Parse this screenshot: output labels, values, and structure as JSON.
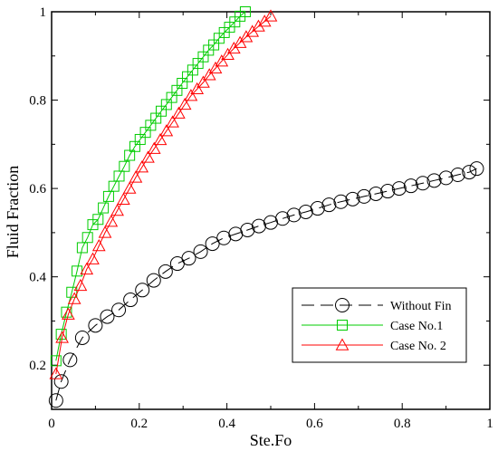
{
  "chart_data": {
    "type": "line",
    "xlabel": "Ste.Fo",
    "ylabel": "Fluid Fraction",
    "xlim": [
      0,
      1
    ],
    "ylim": [
      0.1,
      1
    ],
    "xticks": [
      0,
      0.2,
      0.4,
      0.6,
      0.8,
      1
    ],
    "xtick_labels": [
      "0",
      "0.2",
      "0.4",
      "0.6",
      "0.8",
      "1"
    ],
    "yticks": [
      0.2,
      0.4,
      0.6,
      0.8,
      1
    ],
    "ytick_labels": [
      "0.2",
      "0.4",
      "0.6",
      "0.8",
      "1"
    ],
    "legend_position": "bottom-right",
    "series": [
      {
        "name": "Without Fin",
        "color": "#000000",
        "marker": "circle",
        "line": "dashed",
        "x": [
          0.01,
          0.022,
          0.042,
          0.07,
          0.1,
          0.127,
          0.153,
          0.18,
          0.207,
          0.233,
          0.26,
          0.287,
          0.313,
          0.34,
          0.367,
          0.393,
          0.42,
          0.447,
          0.473,
          0.5,
          0.527,
          0.553,
          0.58,
          0.607,
          0.633,
          0.66,
          0.687,
          0.713,
          0.74,
          0.767,
          0.793,
          0.82,
          0.847,
          0.873,
          0.9,
          0.927,
          0.953,
          0.97
        ],
        "y": [
          0.12,
          0.163,
          0.212,
          0.262,
          0.29,
          0.31,
          0.325,
          0.348,
          0.37,
          0.392,
          0.412,
          0.43,
          0.442,
          0.457,
          0.475,
          0.488,
          0.497,
          0.506,
          0.515,
          0.523,
          0.532,
          0.54,
          0.547,
          0.555,
          0.563,
          0.57,
          0.576,
          0.582,
          0.588,
          0.594,
          0.6,
          0.606,
          0.612,
          0.618,
          0.624,
          0.631,
          0.637,
          0.645
        ]
      },
      {
        "name": "Case No.1",
        "color": "#00cc00",
        "marker": "square",
        "line": "solid",
        "x": [
          0.01,
          0.022,
          0.034,
          0.046,
          0.058,
          0.07,
          0.082,
          0.094,
          0.106,
          0.118,
          0.13,
          0.142,
          0.154,
          0.166,
          0.178,
          0.19,
          0.202,
          0.214,
          0.226,
          0.238,
          0.25,
          0.262,
          0.274,
          0.286,
          0.298,
          0.31,
          0.322,
          0.334,
          0.346,
          0.358,
          0.37,
          0.382,
          0.394,
          0.406,
          0.418,
          0.43,
          0.442
        ],
        "y": [
          0.21,
          0.27,
          0.32,
          0.365,
          0.413,
          0.466,
          0.489,
          0.518,
          0.53,
          0.556,
          0.582,
          0.605,
          0.628,
          0.65,
          0.675,
          0.695,
          0.711,
          0.727,
          0.743,
          0.759,
          0.775,
          0.79,
          0.806,
          0.822,
          0.838,
          0.853,
          0.868,
          0.883,
          0.898,
          0.913,
          0.925,
          0.94,
          0.953,
          0.965,
          0.977,
          0.99,
          1.0
        ]
      },
      {
        "name": "Case No. 2",
        "color": "#ff0000",
        "marker": "triangle",
        "line": "solid",
        "x": [
          0.01,
          0.024,
          0.038,
          0.052,
          0.066,
          0.08,
          0.094,
          0.108,
          0.122,
          0.136,
          0.15,
          0.164,
          0.178,
          0.192,
          0.206,
          0.22,
          0.234,
          0.248,
          0.262,
          0.276,
          0.29,
          0.304,
          0.318,
          0.332,
          0.346,
          0.36,
          0.374,
          0.388,
          0.402,
          0.416,
          0.43,
          0.444,
          0.458,
          0.472,
          0.486,
          0.5
        ],
        "y": [
          0.18,
          0.262,
          0.315,
          0.35,
          0.38,
          0.417,
          0.44,
          0.47,
          0.5,
          0.525,
          0.55,
          0.575,
          0.6,
          0.625,
          0.648,
          0.67,
          0.69,
          0.71,
          0.73,
          0.75,
          0.77,
          0.79,
          0.81,
          0.825,
          0.84,
          0.857,
          0.872,
          0.888,
          0.903,
          0.917,
          0.93,
          0.943,
          0.955,
          0.967,
          0.978,
          0.99
        ]
      }
    ]
  }
}
